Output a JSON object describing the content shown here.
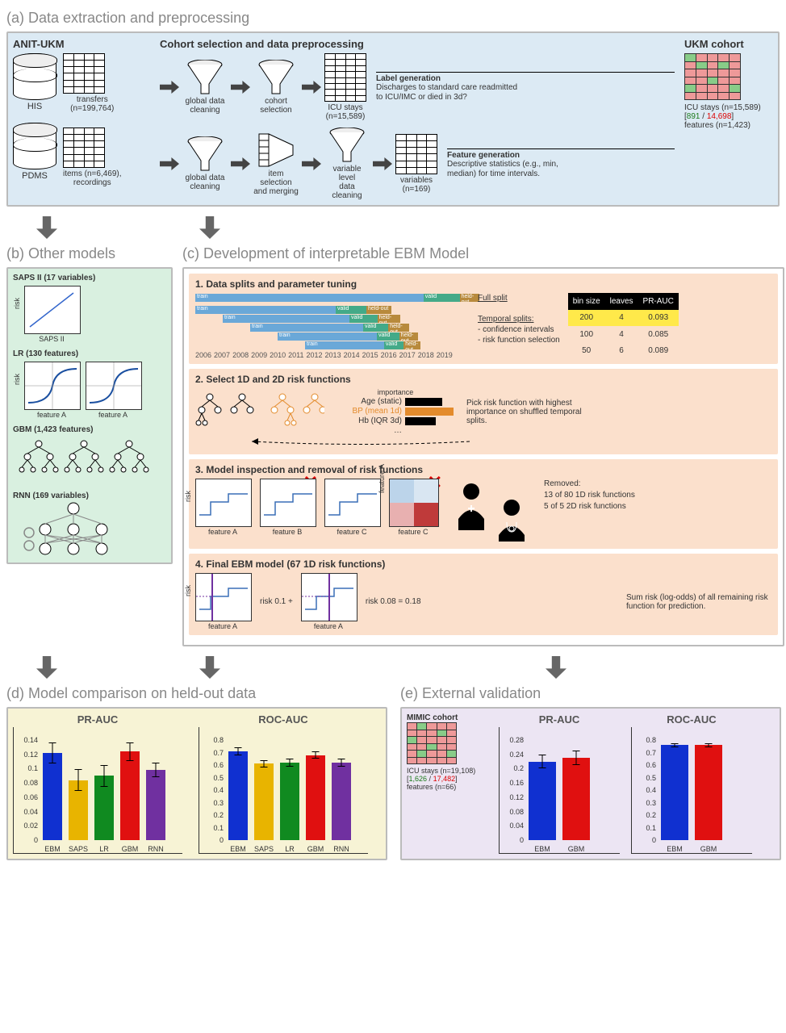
{
  "sections": {
    "a": "(a) Data extraction and preprocessing",
    "b": "(b) Other models",
    "c": "(c) Development of interpretable EBM Model",
    "d": "(d) Model comparison on held-out data",
    "e": "(e) External validation"
  },
  "panelA": {
    "anit_title": "ANIT-UKM",
    "cohort_title": "Cohort selection and data preprocessing",
    "ukm_title": "UKM cohort",
    "his": "HIS",
    "pdms": "PDMS",
    "transfers": "transfers\n(n=199,764)",
    "items": "items (n=6,469),\nrecordings",
    "f_global1": "global data\ncleaning",
    "f_cohort": "cohort\nselection",
    "icu1": "ICU stays\n(n=15,589)",
    "f_global2": "global data\ncleaning",
    "f_itemsel": "item selection\nand merging",
    "f_varclean": "variable level\ndata cleaning",
    "vars": "variables\n(n=169)",
    "labelgen_t": "Label generation",
    "labelgen": "Discharges to standard care readmitted to ICU/IMC or died in 3d?",
    "featgen_t": "Feature generation",
    "featgen": "Descriptive statistics (e.g., min, median) for time intervals.",
    "ukm_caption1": "ICU stays (n=15,589)",
    "ukm_green": "891",
    "ukm_red": "14,698",
    "ukm_caption2": "features (n=1,423)"
  },
  "panelB": {
    "saps_t": "SAPS II (17 variables)",
    "lr_t": "LR (130 features)",
    "gbm_t": "GBM (1,423 features)",
    "rnn_t": "RNN (169 variables)",
    "risk": "risk",
    "featA": "feature A",
    "saps_x": "SAPS II"
  },
  "panelC": {
    "s1_t": "1. Data splits and parameter tuning",
    "s1_full": "Full split",
    "s1_temp": "Temporal splits:",
    "s1_ci": "- confidence intervals",
    "s1_rfs": "- risk function selection",
    "s1_years": [
      "2006",
      "2007",
      "2008",
      "2009",
      "2010",
      "2011",
      "2012",
      "2013",
      "2014",
      "2015",
      "2016",
      "2017",
      "2018",
      "2019"
    ],
    "s1_table": {
      "headers": [
        "bin size",
        "leaves",
        "PR-AUC"
      ],
      "rows": [
        [
          "200",
          "4",
          "0.093"
        ],
        [
          "100",
          "4",
          "0.085"
        ],
        [
          "50",
          "6",
          "0.089"
        ]
      ]
    },
    "s2_t": "2. Select 1D and 2D risk functions",
    "s2_imp": "importance",
    "s2_items": [
      "Age (static)",
      "BP (mean 1d)",
      "Hb (IQR 3d)",
      "…"
    ],
    "s2_note": "Pick risk function with highest importance on shuffled temporal splits.",
    "s3_t": "3. Model inspection and removal of risk functions",
    "s3_removed1": "Removed:",
    "s3_removed2": "13 of 80 1D risk functions",
    "s3_removed3": "5 of 5 2D risk functions",
    "s3_featA": "feature A",
    "s3_featB": "feature B",
    "s3_featC": "feature C",
    "s4_t": "4. Final EBM model (67 1D risk functions)",
    "s4_r1": "risk 0.1 +",
    "s4_r2": "risk 0.08 = 0.18",
    "s4_note": "Sum risk (log-odds) of all remaining risk function for prediction."
  },
  "panelD": {
    "pr_title": "PR-AUC",
    "roc_title": "ROC-AUC",
    "models": [
      "EBM",
      "SAPS",
      "LR",
      "GBM",
      "RNN"
    ],
    "colors": [
      "#1030d0",
      "#e8b400",
      "#108a20",
      "#e01010",
      "#7030a0"
    ],
    "pr": {
      "ylim": [
        0,
        0.14
      ],
      "yticks": [
        0,
        0.02,
        0.04,
        0.06,
        0.08,
        0.1,
        0.12,
        0.14
      ],
      "values": [
        0.122,
        0.084,
        0.09,
        0.124,
        0.098
      ],
      "err": [
        0.015,
        0.015,
        0.015,
        0.013,
        0.01
      ]
    },
    "roc": {
      "ylim": [
        0,
        0.8
      ],
      "yticks": [
        0,
        0.1,
        0.2,
        0.3,
        0.4,
        0.5,
        0.6,
        0.7,
        0.8
      ],
      "values": [
        0.71,
        0.61,
        0.62,
        0.68,
        0.62
      ],
      "err": [
        0.03,
        0.03,
        0.03,
        0.03,
        0.03
      ]
    }
  },
  "panelE": {
    "mimic_t": "MIMIC cohort",
    "mimic_c1": "ICU stays (n=19,108)",
    "mimic_green": "1,626",
    "mimic_red": "17,482",
    "mimic_c2": "features (n=66)",
    "pr_title": "PR-AUC",
    "roc_title": "ROC-AUC",
    "models": [
      "EBM",
      "GBM"
    ],
    "colors": [
      "#1030d0",
      "#e01010"
    ],
    "pr": {
      "ylim": [
        0,
        0.28
      ],
      "yticks": [
        0,
        0.04,
        0.08,
        0.12,
        0.16,
        0.2,
        0.24,
        0.28
      ],
      "values": [
        0.22,
        0.23
      ],
      "err": [
        0.02,
        0.02
      ]
    },
    "roc": {
      "ylim": [
        0,
        0.8
      ],
      "yticks": [
        0,
        0.1,
        0.2,
        0.3,
        0.4,
        0.5,
        0.6,
        0.7,
        0.8
      ],
      "values": [
        0.76,
        0.76
      ],
      "err": [
        0.015,
        0.015
      ]
    }
  }
}
